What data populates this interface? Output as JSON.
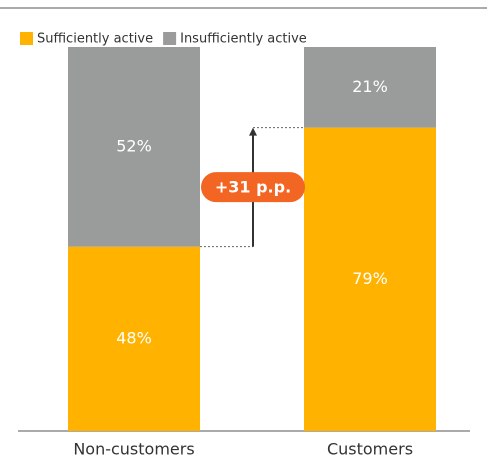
{
  "chart_data": {
    "type": "stacked_bar",
    "categories": [
      "Non-customers",
      "Customers"
    ],
    "series": [
      {
        "name": "Sufficiently active",
        "color": "#ffb300",
        "values": [
          48,
          79
        ],
        "value_labels": [
          "48%",
          "79%"
        ]
      },
      {
        "name": "Insufficiently active",
        "color": "#999c9a",
        "values": [
          52,
          21
        ],
        "value_labels": [
          "52%",
          "21%"
        ]
      }
    ],
    "ylim": [
      0,
      100
    ],
    "annotation": "+31 p.p.",
    "annotation_color": "#f26522"
  }
}
